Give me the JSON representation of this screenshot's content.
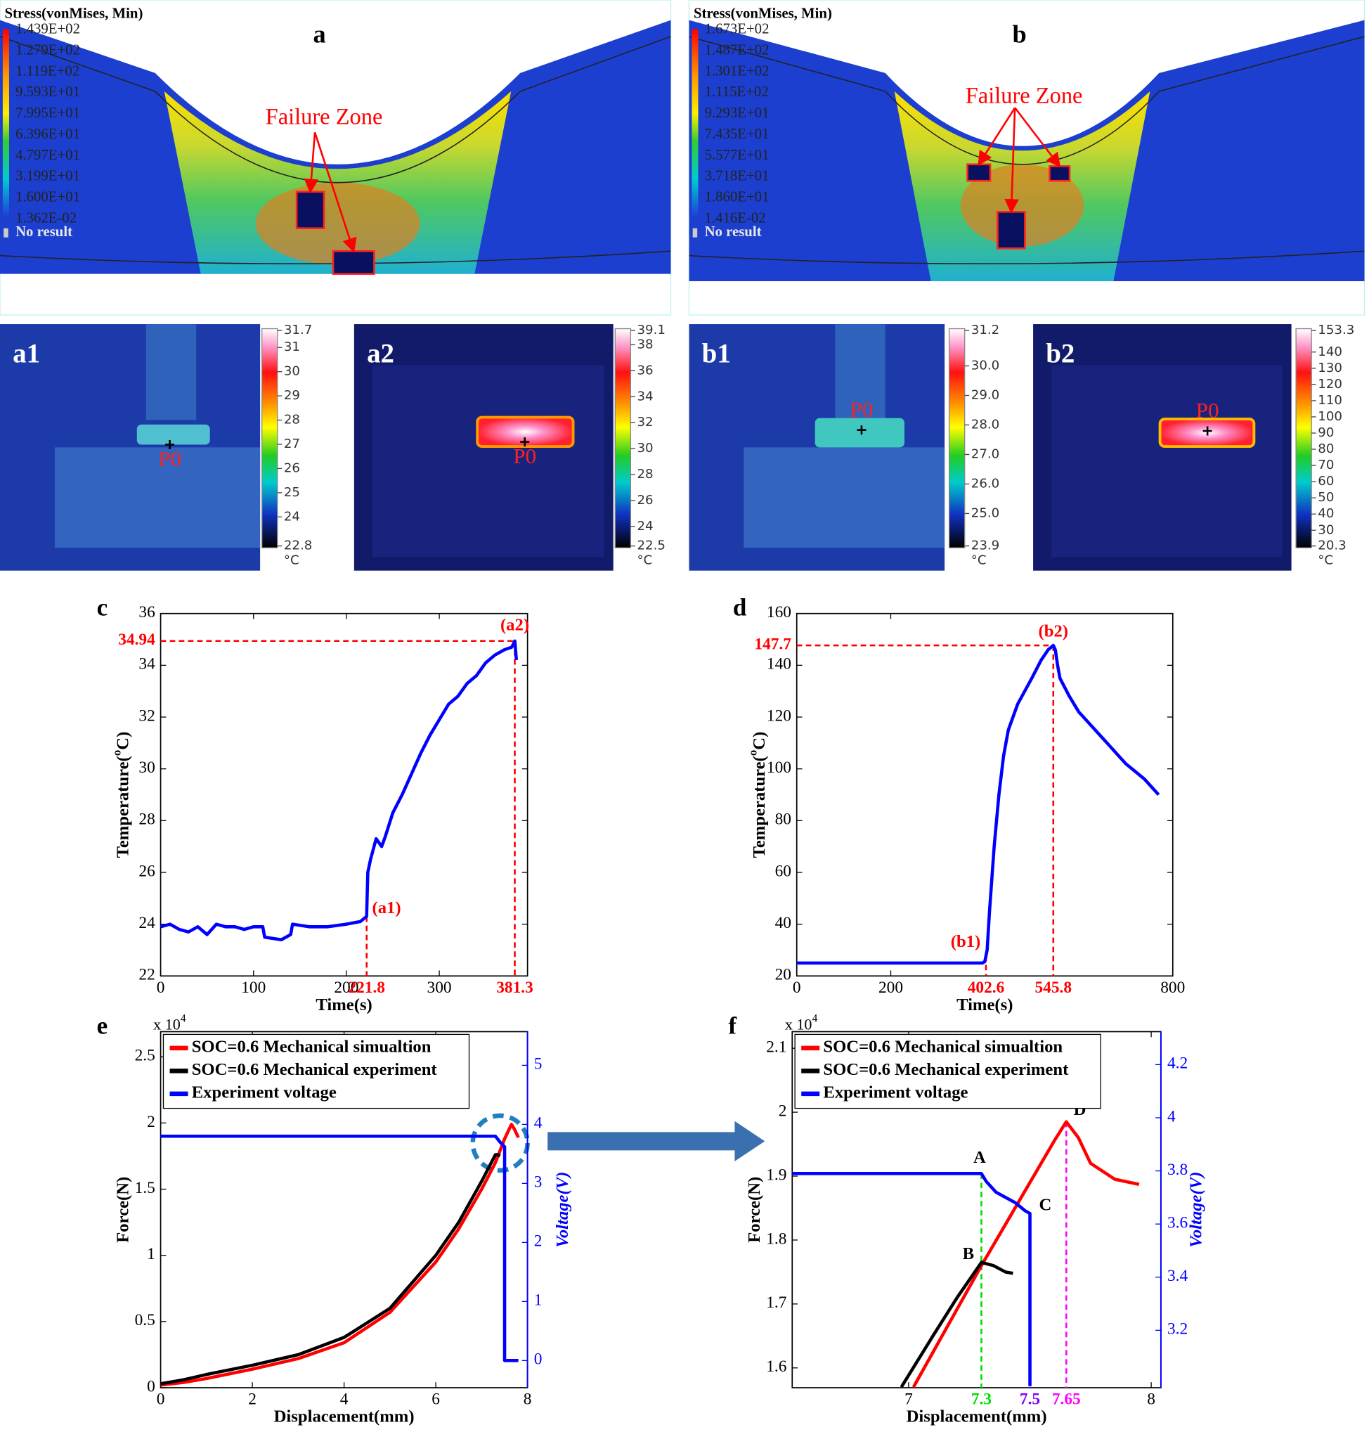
{
  "simulations": [
    {
      "label": "a",
      "legend_title": "Stress(vonMises, Min)",
      "legend_values": [
        "1.439E+02",
        "1.279E+02",
        "1.119E+02",
        "9.593E+01",
        "7.995E+01",
        "6.396E+01",
        "4.797E+01",
        "3.199E+01",
        "1.600E+01",
        "1.362E-02"
      ],
      "no_result": "No result",
      "annotation": "Failure Zone"
    },
    {
      "label": "b",
      "legend_title": "Stress(vonMises, Min)",
      "legend_values": [
        "1.673E+02",
        "1.487E+02",
        "1.301E+02",
        "1.115E+02",
        "9.293E+01",
        "7.435E+01",
        "5.577E+01",
        "3.718E+01",
        "1.860E+01",
        "1.416E-02"
      ],
      "no_result": "No result",
      "annotation": "Failure Zone"
    }
  ],
  "thermal": [
    {
      "label": "a1",
      "marker": "P0",
      "scale_labels": [
        "31.7",
        "31",
        "30",
        "29",
        "28",
        "27",
        "26",
        "25",
        "24",
        "22.8"
      ],
      "unit": "°C"
    },
    {
      "label": "a2",
      "marker": "P0",
      "scale_labels": [
        "39.1",
        "38",
        "36",
        "34",
        "32",
        "30",
        "28",
        "26",
        "24",
        "22.5"
      ],
      "unit": "°C"
    },
    {
      "label": "b1",
      "marker": "P0",
      "scale_labels": [
        "31.2",
        "30.0",
        "29.0",
        "28.0",
        "27.0",
        "26.0",
        "25.0",
        "23.9"
      ],
      "unit": "°C"
    },
    {
      "label": "b2",
      "marker": "P0",
      "scale_labels": [
        "153.3",
        "140",
        "130",
        "120",
        "110",
        "100",
        "90",
        "80",
        "70",
        "60",
        "50",
        "40",
        "30",
        "20.3"
      ],
      "unit": "°C"
    }
  ],
  "chart_data": [
    {
      "type": "line",
      "panel": "c",
      "xlabel": "Time(s)",
      "ylabel": [
        "Temperature(",
        "o",
        "C)"
      ],
      "x": [
        0,
        10,
        20,
        30,
        40,
        50,
        60,
        70,
        80,
        90,
        100,
        110,
        112,
        130,
        140,
        142,
        160,
        180,
        200,
        215,
        221.8,
        223,
        226,
        232,
        238,
        242,
        250,
        260,
        270,
        280,
        290,
        300,
        310,
        320,
        330,
        340,
        350,
        360,
        370,
        378,
        381.3,
        383
      ],
      "values": [
        23.9,
        24.0,
        23.8,
        23.7,
        23.9,
        23.6,
        24.0,
        23.9,
        23.9,
        23.8,
        23.9,
        23.9,
        23.5,
        23.4,
        23.6,
        24.0,
        23.9,
        23.9,
        24.0,
        24.1,
        24.3,
        26.0,
        26.5,
        27.3,
        27.0,
        27.4,
        28.3,
        29.0,
        29.8,
        30.6,
        31.3,
        31.9,
        32.5,
        32.8,
        33.3,
        33.6,
        34.1,
        34.4,
        34.6,
        34.7,
        34.94,
        34.2
      ],
      "color": "#0000ff",
      "xlim": [
        0,
        395
      ],
      "ylim": [
        22,
        36
      ],
      "xticks": [
        0,
        100,
        200,
        300
      ],
      "yticks": [
        22,
        24,
        26,
        28,
        30,
        32,
        34,
        36
      ],
      "ref_x": [
        {
          "x": 221.8,
          "color": "#ff0000"
        },
        {
          "x": 381.3,
          "color": "#ff0000"
        }
      ],
      "ref_y": [
        {
          "y": 34.94,
          "color": "#ff0000"
        }
      ],
      "annotations": [
        {
          "text": "(a1)",
          "x": 221.8,
          "color": "#ff0000"
        },
        {
          "text": "(a2)",
          "x": 381.3,
          "color": "#ff0000"
        }
      ]
    },
    {
      "type": "line",
      "panel": "d",
      "xlabel": "Time(s)",
      "ylabel": [
        "Temperature(",
        "o",
        "C)"
      ],
      "x": [
        0,
        100,
        200,
        300,
        395,
        400,
        405,
        410,
        420,
        430,
        440,
        450,
        470,
        500,
        520,
        535,
        545.8,
        550,
        555,
        560,
        580,
        600,
        650,
        700,
        740,
        770
      ],
      "values": [
        25,
        25,
        25,
        25,
        25,
        25.5,
        30,
        45,
        70,
        90,
        105,
        115,
        125,
        135,
        142,
        146,
        147.7,
        146,
        140,
        135,
        128,
        122,
        112,
        102,
        96,
        90
      ],
      "color": "#0000ff",
      "xlim": [
        0,
        800
      ],
      "ylim": [
        20,
        160
      ],
      "xticks": [
        0,
        200,
        800
      ],
      "yticks": [
        20,
        40,
        60,
        80,
        100,
        120,
        140,
        160
      ],
      "ref_x": [
        {
          "x": 402.6,
          "color": "#ff0000"
        },
        {
          "x": 545.8,
          "color": "#ff0000"
        }
      ],
      "ref_y": [
        {
          "y": 147.7,
          "color": "#ff0000"
        }
      ],
      "annotations": [
        {
          "text": "(b1)",
          "x": 402.6,
          "color": "#ff0000"
        },
        {
          "text": "(b2)",
          "x": 545.8,
          "color": "#ff0000"
        }
      ]
    },
    {
      "type": "line",
      "panel": "e",
      "multiplier": [
        "x 10",
        "4"
      ],
      "xlabel": "Displacement(mm)",
      "ylabel": "Force(N)",
      "y2label": "Voltage(V)",
      "y2color": "#0000ff",
      "xlim": [
        0,
        8
      ],
      "ylim": [
        0,
        2.69
      ],
      "y2lim": [
        -0.46,
        5.57
      ],
      "xticks": [
        0,
        2,
        4,
        6,
        8
      ],
      "yticks": [
        0,
        0.5,
        1,
        1.5,
        2,
        2.5
      ],
      "y2ticks": [
        0,
        1,
        2,
        3,
        4,
        5
      ],
      "legend": "upper left",
      "series": [
        {
          "name": "SOC=0.6 Mechanical simualtion",
          "color": "#ff0000",
          "x": [
            0,
            0.5,
            1,
            2,
            3,
            4,
            5,
            6,
            6.5,
            7,
            7.3,
            7.5,
            7.65,
            7.72,
            7.8
          ],
          "values": [
            0.02,
            0.04,
            0.07,
            0.14,
            0.22,
            0.34,
            0.57,
            0.95,
            1.2,
            1.5,
            1.7,
            1.88,
            1.99,
            1.95,
            1.89
          ]
        },
        {
          "name": "SOC=0.6 Mechanical experiment",
          "color": "#000000",
          "x": [
            0,
            0.5,
            1,
            2,
            3,
            4,
            5,
            6,
            6.5,
            7,
            7.3,
            7.35,
            7.4
          ],
          "values": [
            0.03,
            0.06,
            0.1,
            0.17,
            0.25,
            0.38,
            0.6,
            1.0,
            1.25,
            1.56,
            1.76,
            1.76,
            1.75
          ]
        },
        {
          "name": "Experiment voltage",
          "color": "#0000ff",
          "axis": "y2",
          "x": [
            0,
            7.3,
            7.4,
            7.5,
            7.5,
            7.55,
            7.8
          ],
          "values": [
            3.8,
            3.8,
            3.7,
            3.62,
            0,
            0,
            0
          ]
        }
      ]
    },
    {
      "type": "line",
      "panel": "f",
      "multiplier": [
        "x 10",
        "4"
      ],
      "xlabel": "Displacement(mm)",
      "ylabel": "Force(N)",
      "y2label": "Voltage(V)",
      "y2color": "#0000ff",
      "xlim": [
        6.52,
        8.04
      ],
      "ylim": [
        1.569,
        2.126
      ],
      "y2lim": [
        2.984,
        4.324
      ],
      "xticks": [
        7,
        8
      ],
      "yticks": [
        1.6,
        1.7,
        1.8,
        1.9,
        2,
        2.1
      ],
      "y2ticks": [
        3.2,
        3.4,
        3.6,
        3.8,
        4,
        4.2
      ],
      "legend": "upper left",
      "series": [
        {
          "name": "SOC=0.6 Mechanical simualtion",
          "color": "#ff0000",
          "x": [
            7.02,
            7.3,
            7.5,
            7.6,
            7.65,
            7.7,
            7.75,
            7.85,
            7.95
          ],
          "values": [
            1.57,
            1.76,
            1.89,
            1.955,
            1.985,
            1.96,
            1.92,
            1.895,
            1.887
          ]
        },
        {
          "name": "SOC=0.6 Mechanical experiment",
          "color": "#000000",
          "x": [
            6.97,
            7.1,
            7.2,
            7.3,
            7.35,
            7.4,
            7.43
          ],
          "values": [
            1.57,
            1.65,
            1.71,
            1.765,
            1.76,
            1.75,
            1.748
          ]
        },
        {
          "name": "Experiment voltage",
          "color": "#0000ff",
          "axis": "y2",
          "x": [
            6.52,
            6.8,
            7.0,
            7.3,
            7.32,
            7.36,
            7.4,
            7.44,
            7.48,
            7.5,
            7.5
          ],
          "values": [
            3.79,
            3.79,
            3.79,
            3.79,
            3.76,
            3.72,
            3.7,
            3.68,
            3.65,
            3.64,
            2.99
          ]
        }
      ],
      "ref_x": [
        {
          "x": 7.3,
          "color": "#00dd00",
          "series": 2
        },
        {
          "x": 7.5,
          "color": "#8000ff",
          "series": 2
        },
        {
          "x": 7.65,
          "color": "#ff00ff",
          "series": 0
        }
      ],
      "annotations": [
        {
          "text": "A",
          "x": 7.3,
          "series": 2,
          "color": "#000000"
        },
        {
          "text": "B",
          "x": 7.3,
          "series": 1,
          "color": "#000000"
        },
        {
          "text": "C",
          "x": 7.5,
          "series": 2,
          "color": "#000000"
        },
        {
          "text": "D",
          "x": 7.65,
          "series": 0,
          "color": "#000000"
        }
      ]
    }
  ]
}
